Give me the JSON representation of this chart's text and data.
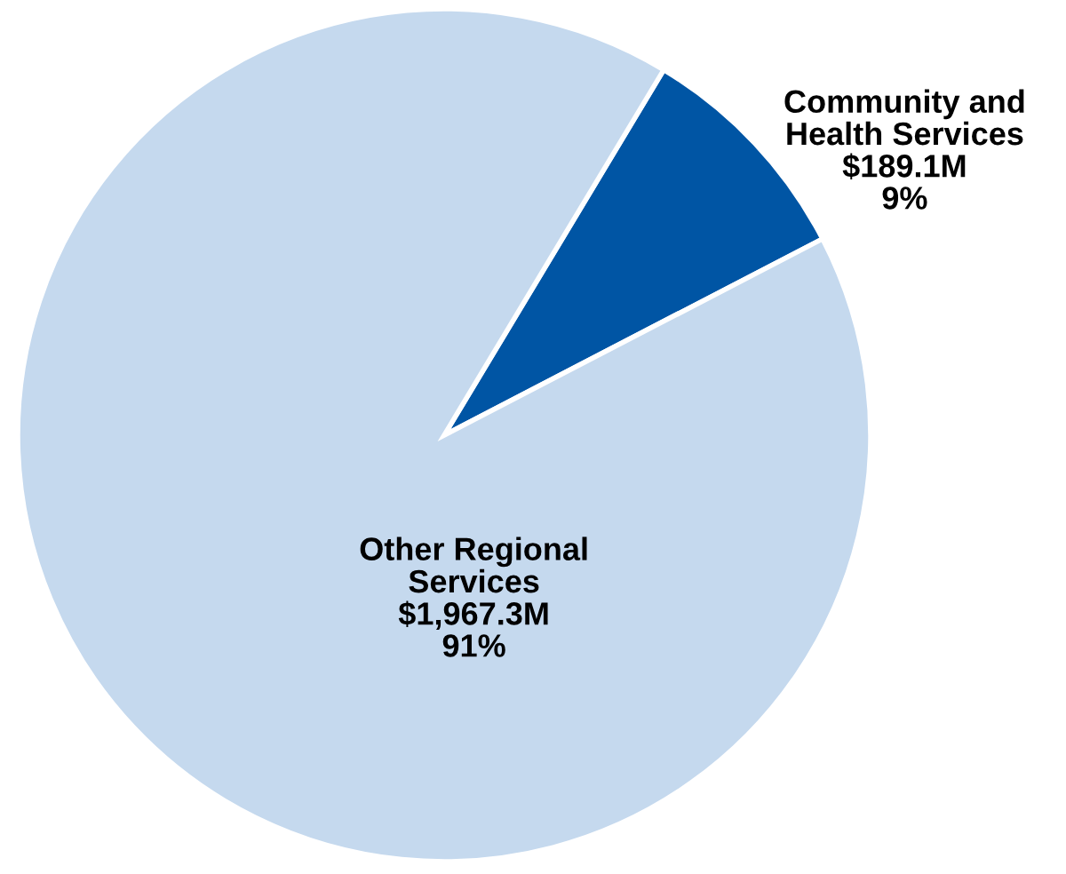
{
  "chart_data": {
    "type": "pie",
    "categories": [
      "Community and Health Services",
      "Other Regional Services"
    ],
    "values": [
      189.1,
      1967.3
    ],
    "colors": [
      "#0055a4",
      "#c5d9ee"
    ],
    "value_labels": [
      "$189.1M",
      "$1,967.3M"
    ],
    "annotations": [
      "9%",
      "91%"
    ]
  }
}
